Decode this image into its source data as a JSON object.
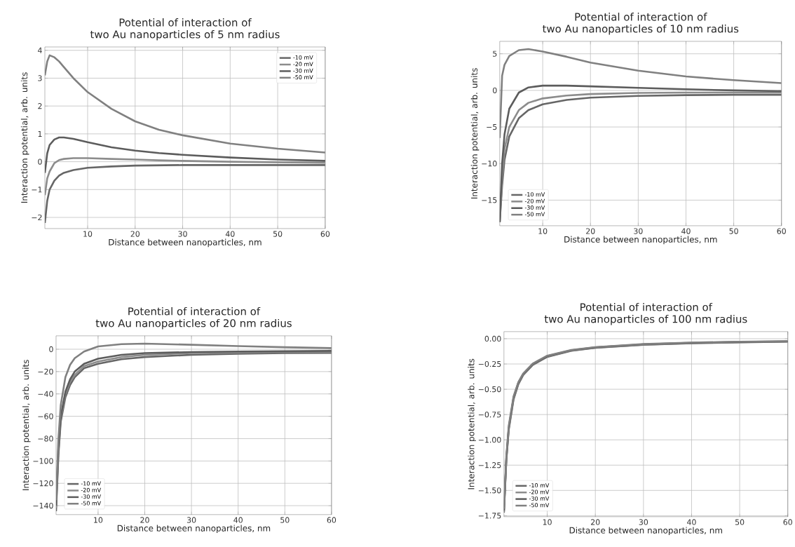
{
  "chart_data": [
    {
      "type": "line",
      "title": "Potential of interaction of",
      "subtitle": "two Au nanoparticles of 5 nm radius",
      "xlabel": "Distance between nanoparticles, nm",
      "ylabel": "Interaction potential, arb. units",
      "x": [
        1,
        1.5,
        2,
        3,
        4,
        5,
        7,
        10,
        15,
        20,
        25,
        30,
        40,
        50,
        60
      ],
      "xlim": [
        1,
        60
      ],
      "xticks": [
        10,
        20,
        30,
        40,
        50,
        60
      ],
      "ylim": [
        -2.4,
        4.12
      ],
      "yticks": [
        {
          "value": -2,
          "label": "−2"
        },
        {
          "value": -1,
          "label": "−1"
        },
        0,
        1,
        2,
        3,
        4
      ],
      "grid": true,
      "legend": "top right",
      "series": [
        {
          "name": "-10 mV",
          "color": "#666666",
          "values": [
            -2.2,
            -1.4,
            -1.0,
            -0.68,
            -0.5,
            -0.4,
            -0.3,
            -0.22,
            -0.17,
            -0.14,
            -0.13,
            -0.12,
            -0.12,
            -0.12,
            -0.12
          ]
        },
        {
          "name": "-20 mV",
          "color": "#8c8c8c",
          "values": [
            -1.2,
            -0.6,
            -0.35,
            -0.05,
            0.06,
            0.1,
            0.13,
            0.13,
            0.1,
            0.08,
            0.05,
            0.03,
            0.0,
            -0.02,
            -0.04
          ]
        },
        {
          "name": "-30 mV",
          "color": "#5c5c5c",
          "values": [
            -0.4,
            0.3,
            0.6,
            0.8,
            0.87,
            0.87,
            0.82,
            0.7,
            0.52,
            0.4,
            0.31,
            0.25,
            0.15,
            0.08,
            0.03
          ]
        },
        {
          "name": "-50 mV",
          "color": "#808080",
          "values": [
            3.1,
            3.6,
            3.82,
            3.75,
            3.6,
            3.4,
            3.0,
            2.5,
            1.9,
            1.45,
            1.15,
            0.95,
            0.65,
            0.47,
            0.33
          ]
        }
      ]
    },
    {
      "type": "line",
      "title": "Potential of interaction of",
      "subtitle": "two Au nanoparticles of 10 nm radius",
      "xlabel": "Distance between nanoparticles, nm",
      "ylabel": "Interaction potential, arb. units",
      "x": [
        1,
        1.5,
        2,
        3,
        5,
        7,
        10,
        15,
        20,
        30,
        40,
        50,
        60
      ],
      "xlim": [
        1,
        60
      ],
      "xticks": [
        10,
        20,
        30,
        40,
        50,
        60
      ],
      "ylim": [
        -18.5,
        6.7
      ],
      "yticks": [
        {
          "value": -15,
          "label": "−15"
        },
        {
          "value": -10,
          "label": "−10"
        },
        {
          "value": -5,
          "label": "−5"
        },
        0,
        5
      ],
      "grid": true,
      "legend": "bottom left",
      "series": [
        {
          "name": "-10 mV",
          "color": "#666666",
          "values": [
            -18,
            -13,
            -9.5,
            -6.3,
            -3.8,
            -2.7,
            -1.9,
            -1.3,
            -1.0,
            -0.75,
            -0.65,
            -0.6,
            -0.6
          ]
        },
        {
          "name": "-20 mV",
          "color": "#8c8c8c",
          "values": [
            -18,
            -12,
            -8,
            -5,
            -2.7,
            -1.7,
            -1.1,
            -0.7,
            -0.5,
            -0.35,
            -0.3,
            -0.3,
            -0.3
          ]
        },
        {
          "name": "-30 mV",
          "color": "#5c5c5c",
          "values": [
            -18,
            -10,
            -6,
            -2.5,
            -0.3,
            0.4,
            0.65,
            0.65,
            0.55,
            0.35,
            0.15,
            0.0,
            -0.1
          ]
        },
        {
          "name": "-50 mV",
          "color": "#808080",
          "values": [
            -6.5,
            2,
            3.5,
            4.7,
            5.5,
            5.65,
            5.3,
            4.6,
            3.8,
            2.7,
            1.9,
            1.4,
            1.0
          ]
        }
      ]
    },
    {
      "type": "line",
      "title": "Potential of interaction of",
      "subtitle": "two Au nanoparticles of 20 nm radius",
      "xlabel": "Distance between nanoparticles, nm",
      "ylabel": "Interaction potential, arb. units",
      "x": [
        1,
        1.5,
        2,
        3,
        4,
        5,
        7,
        10,
        15,
        20,
        30,
        40,
        50,
        60
      ],
      "xlim": [
        1,
        60
      ],
      "xticks": [
        10,
        20,
        30,
        40,
        50,
        60
      ],
      "ylim": [
        -148,
        12
      ],
      "yticks": [
        {
          "value": -140,
          "label": "−140"
        },
        {
          "value": -120,
          "label": "−120"
        },
        {
          "value": -100,
          "label": "−100"
        },
        {
          "value": -80,
          "label": "−80"
        },
        {
          "value": -60,
          "label": "−60"
        },
        {
          "value": -40,
          "label": "−40"
        },
        {
          "value": -20,
          "label": "−20"
        },
        0
      ],
      "grid": true,
      "legend": "bottom left",
      "series": [
        {
          "name": "-10 mV",
          "color": "#666666",
          "values": [
            -145,
            -95,
            -65,
            -43,
            -32,
            -25,
            -17,
            -13,
            -9,
            -7,
            -5,
            -4,
            -3.5,
            -3.2
          ]
        },
        {
          "name": "-20 mV",
          "color": "#8c8c8c",
          "values": [
            -142,
            -92,
            -62,
            -40,
            -29,
            -23,
            -15,
            -11,
            -7,
            -5,
            -3.5,
            -3,
            -2.5,
            -2.3
          ]
        },
        {
          "name": "-30 mV",
          "color": "#5c5c5c",
          "values": [
            -140,
            -88,
            -60,
            -38,
            -27,
            -20,
            -13,
            -8.5,
            -5,
            -3.5,
            -2.5,
            -2,
            -1.8,
            -1.5
          ]
        },
        {
          "name": "-50 mV",
          "color": "#808080",
          "values": [
            -135,
            -80,
            -50,
            -25,
            -14,
            -8,
            -2,
            2.5,
            4.5,
            5,
            4,
            2.8,
            1.8,
            1.0
          ]
        }
      ]
    },
    {
      "type": "line",
      "title": "Potential of interaction of",
      "subtitle": "two Au nanoparticles of 100 nm radius",
      "xlabel": "Distance between nanoparticles, nm",
      "ylabel": "Interaction potential, arb. units",
      "x": [
        1,
        1.5,
        2,
        3,
        4,
        5,
        7,
        10,
        15,
        20,
        30,
        40,
        50,
        60
      ],
      "xlim": [
        1,
        60
      ],
      "xticks": [
        10,
        20,
        30,
        40,
        50,
        60
      ],
      "ylim": [
        -1.76,
        0.07
      ],
      "yticks": [
        {
          "value": -1.75,
          "label": "−1.75"
        },
        {
          "value": -1.5,
          "label": "−1.50"
        },
        {
          "value": -1.25,
          "label": "−1.25"
        },
        {
          "value": -1.0,
          "label": "−1.00"
        },
        {
          "value": -0.75,
          "label": "−0.75"
        },
        {
          "value": -0.5,
          "label": "−0.50"
        },
        {
          "value": -0.25,
          "label": "−0.25"
        },
        {
          "value": 0,
          "label": "0.00"
        }
      ],
      "grid": true,
      "legend": "bottom left",
      "series": [
        {
          "name": "-10 mV",
          "color": "#666666",
          "values": [
            -1.72,
            -1.2,
            -0.9,
            -0.6,
            -0.45,
            -0.36,
            -0.26,
            -0.18,
            -0.12,
            -0.09,
            -0.06,
            -0.045,
            -0.036,
            -0.03
          ]
        },
        {
          "name": "-20 mV",
          "color": "#8c8c8c",
          "values": [
            -1.71,
            -1.19,
            -0.89,
            -0.59,
            -0.44,
            -0.355,
            -0.255,
            -0.175,
            -0.117,
            -0.088,
            -0.058,
            -0.043,
            -0.034,
            -0.028
          ]
        },
        {
          "name": "-30 mV",
          "color": "#5c5c5c",
          "values": [
            -1.7,
            -1.18,
            -0.88,
            -0.58,
            -0.435,
            -0.35,
            -0.25,
            -0.172,
            -0.115,
            -0.086,
            -0.056,
            -0.041,
            -0.032,
            -0.026
          ]
        },
        {
          "name": "-50 mV",
          "color": "#808080",
          "values": [
            -1.68,
            -1.16,
            -0.86,
            -0.57,
            -0.43,
            -0.345,
            -0.245,
            -0.168,
            -0.112,
            -0.083,
            -0.053,
            -0.038,
            -0.03,
            -0.024
          ]
        }
      ]
    }
  ]
}
